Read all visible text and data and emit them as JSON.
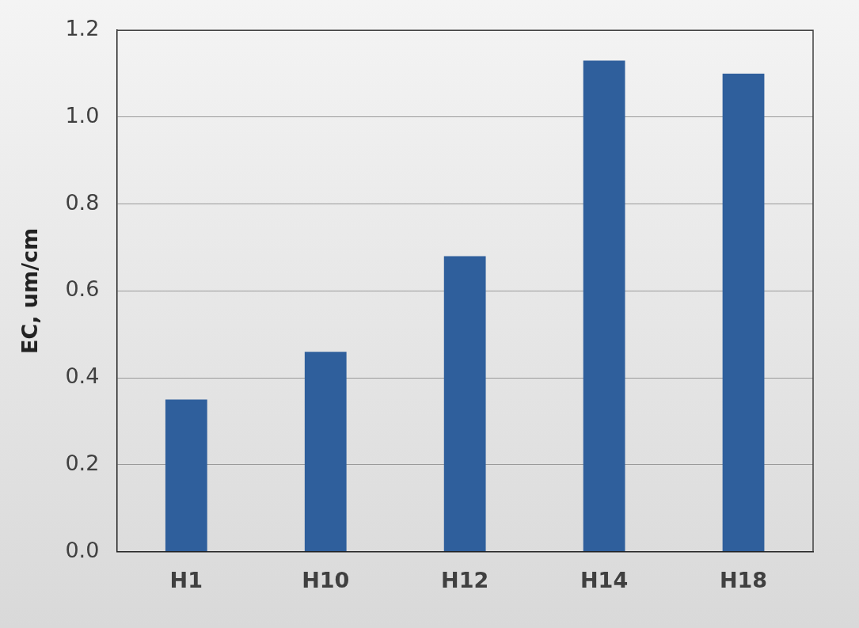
{
  "chart_data": {
    "type": "bar",
    "ylabel": "EC, um/cm",
    "categories": [
      "H1",
      "H10",
      "H12",
      "H14",
      "H18"
    ],
    "values": [
      0.35,
      0.46,
      0.68,
      1.13,
      1.1
    ],
    "color": "#2f5f9c",
    "ylim": [
      0,
      1.2
    ],
    "yticks": [
      {
        "value": 0,
        "label": "0.0"
      },
      {
        "value": 0.2,
        "label": "0.2"
      },
      {
        "value": 0.4,
        "label": "0.4"
      },
      {
        "value": 0.6,
        "label": "0.6"
      },
      {
        "value": 0.8,
        "label": "0.8"
      },
      {
        "value": 1,
        "label": "1.0"
      },
      {
        "value": 1.2,
        "label": "1.2"
      }
    ],
    "grid": "y",
    "legend": false
  }
}
